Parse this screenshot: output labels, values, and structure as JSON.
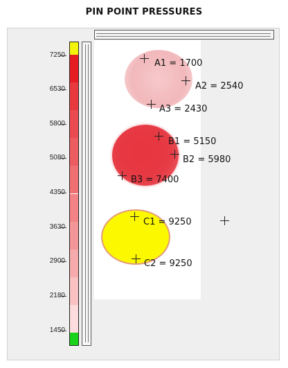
{
  "title": "PIN POINT PRESSURES",
  "scale": {
    "ticks": [
      "7250",
      "6530",
      "5800",
      "5080",
      "4350",
      "3630",
      "2900",
      "2180",
      "1450"
    ],
    "colors": [
      "#f4f40a",
      "#e51d23",
      "#e8393f",
      "#ea4a50",
      "#ed5c61",
      "#ef6f73",
      "#f28286",
      "#f49698",
      "#f7aaac",
      "#f9c1c2",
      "#fcdcdc",
      "#1bd21b"
    ]
  },
  "points": [
    {
      "name": "A1",
      "value": "1700",
      "label": "A1 = 1700"
    },
    {
      "name": "A2",
      "value": "2540",
      "label": "A2 = 2540"
    },
    {
      "name": "A3",
      "value": "2430",
      "label": "A3 = 2430"
    },
    {
      "name": "B1",
      "value": "5150",
      "label": "B1 = 5150"
    },
    {
      "name": "B2",
      "value": "5980",
      "label": "B2 = 5980"
    },
    {
      "name": "B3",
      "value": "7400",
      "label": "B3 = 7400"
    },
    {
      "name": "C1",
      "value": "9250",
      "label": "C1 = 9250"
    },
    {
      "name": "C2",
      "value": "9250",
      "label": "C2 = 9250"
    }
  ]
}
